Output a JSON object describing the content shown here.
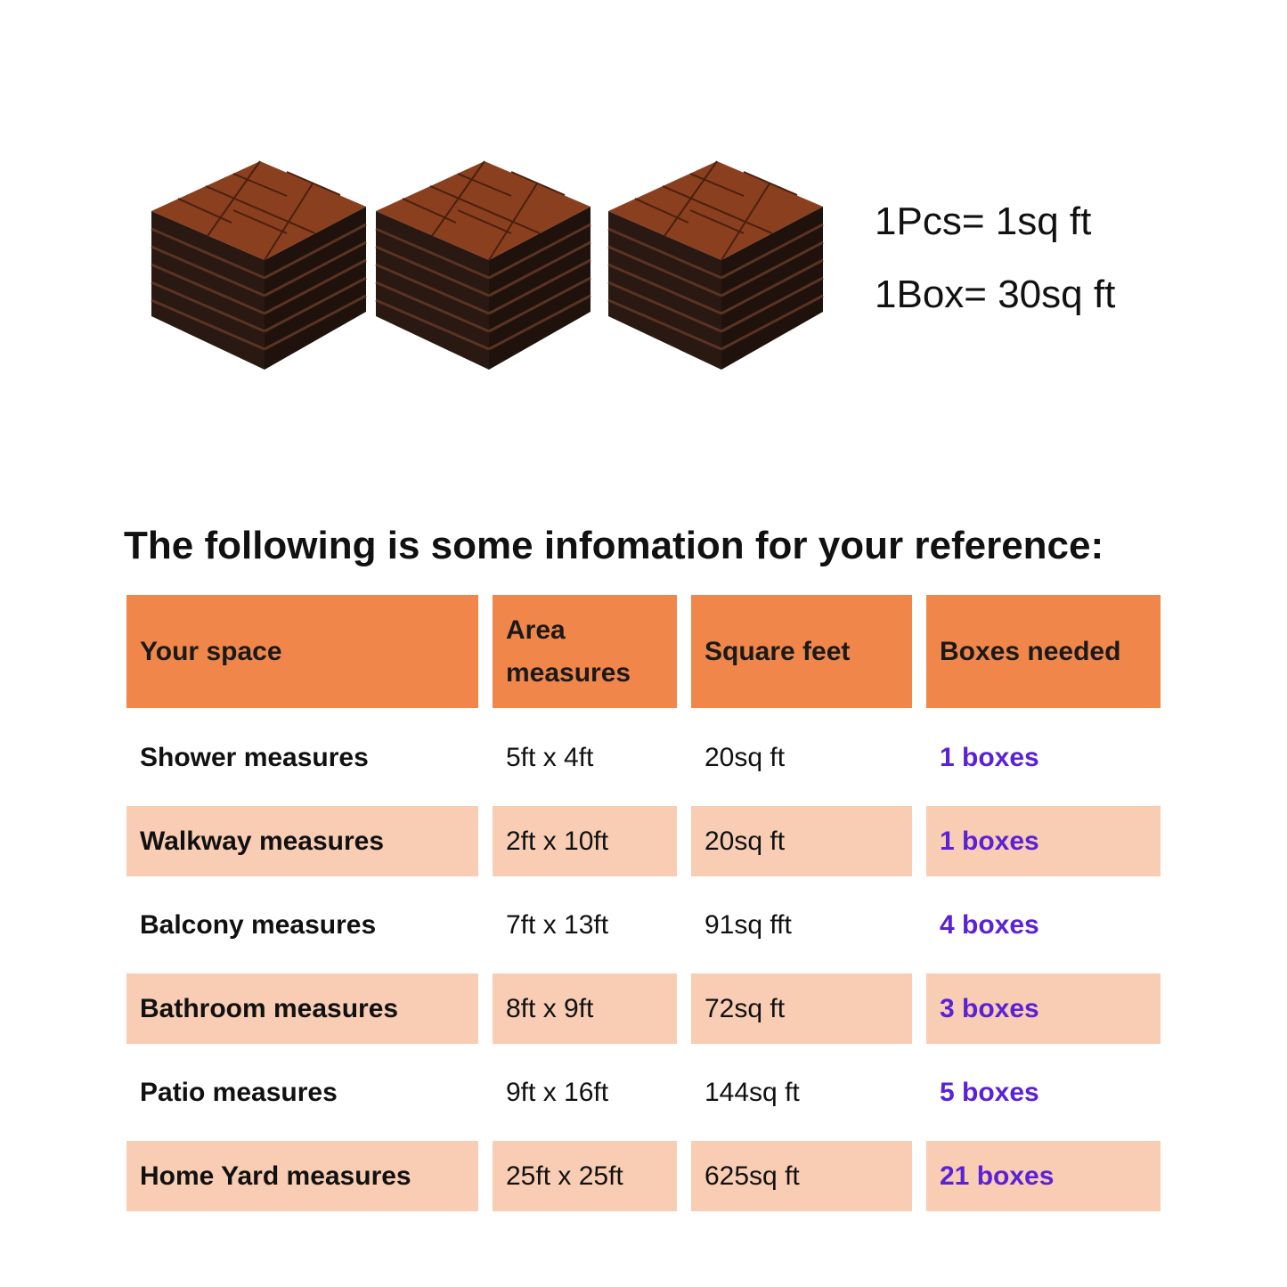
{
  "info": {
    "per_piece": "1Pcs= 1sq ft",
    "per_box": "1Box= 30sq ft"
  },
  "title": "The following is some infomation for your reference:",
  "table": {
    "header": [
      "Your space",
      "Area measures",
      "Square feet",
      "Boxes needed"
    ],
    "rows": [
      [
        "Shower measures",
        "5ft x 4ft",
        "20sq ft",
        "1 boxes"
      ],
      [
        "Walkway measures",
        "2ft x 10ft",
        "20sq ft",
        "1 boxes"
      ],
      [
        "Balcony measures",
        "7ft x 13ft",
        "91sq fft",
        "4 boxes"
      ],
      [
        "Bathroom measures",
        "8ft x 9ft",
        "72sq ft",
        "3 boxes"
      ],
      [
        "Patio measures",
        "9ft x 16ft",
        "144sq ft",
        "5 boxes"
      ],
      [
        "Home Yard measures",
        "25ft x 25ft",
        "625sq ft",
        "21 boxes"
      ]
    ]
  }
}
